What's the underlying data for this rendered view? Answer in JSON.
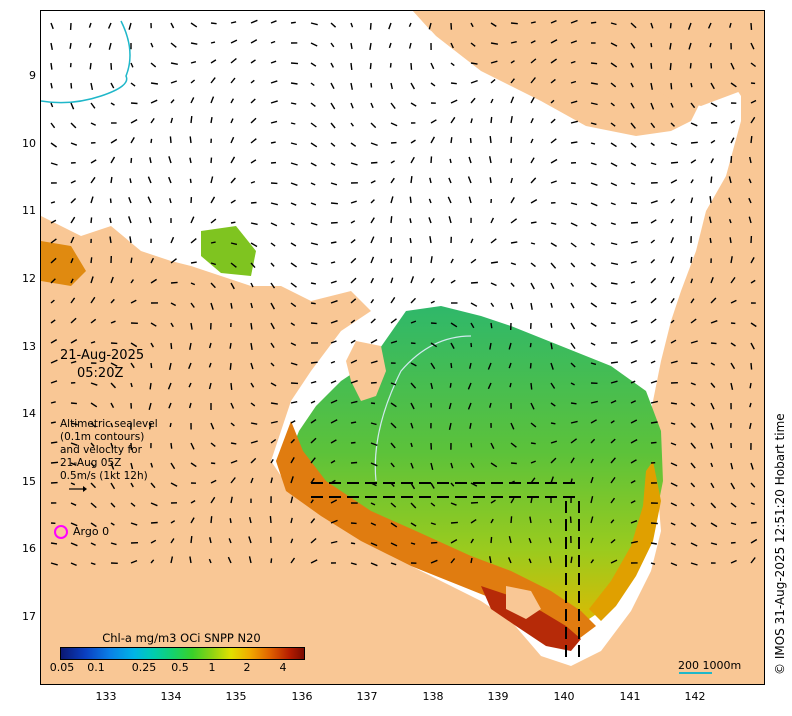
{
  "date": "21-Aug-2025",
  "time": "05:20Z",
  "info_lines": [
    "Altimetric sealevel",
    "(0.1m contours)",
    "and velocity for",
    "21-Aug 05Z",
    "0.5m/s (1kt 12h)"
  ],
  "argo": {
    "label": "Argo 0",
    "color": "#ff00ff"
  },
  "lat_ticks": [
    "9",
    "10",
    "11",
    "12",
    "13",
    "14",
    "15",
    "16",
    "17"
  ],
  "lon_ticks": [
    "133",
    "134",
    "135",
    "136",
    "137",
    "138",
    "139",
    "140",
    "141",
    "142"
  ],
  "colorbar": {
    "title": "Chl-a mg/m3 OCi SNPP N20",
    "ticks": [
      "0.05",
      "0.1",
      "0.25",
      "0.5",
      "1",
      "2",
      "4"
    ]
  },
  "scale": {
    "label": "200  1000m",
    "color": "#1fb7c9"
  },
  "credit": "© IMOS 31-Aug-2025 12:51:20 Hobart time",
  "icons": [
    "velocity-arrow-icon",
    "argo-circle-icon"
  ],
  "colors": {
    "land": "#f9c795",
    "ocean": "#ffffff",
    "arrow": "#000000",
    "contour": "#1fb7c9",
    "argo": "#ff00ff"
  }
}
